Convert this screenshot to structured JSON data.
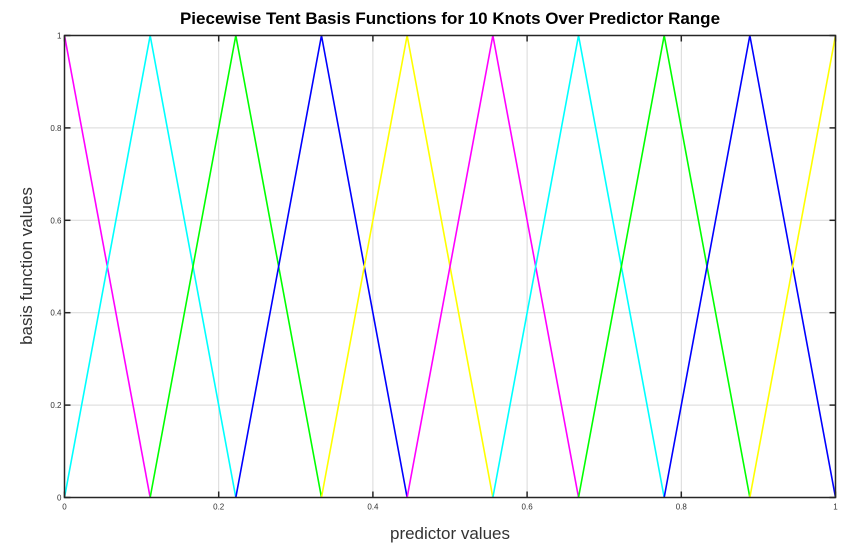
{
  "chart_data": {
    "type": "line",
    "title": "Piecewise Tent Basis Functions for 10 Knots Over Predictor Range",
    "xlabel": "predictor values",
    "ylabel": "basis function values",
    "xlim": [
      0,
      1
    ],
    "ylim": [
      0,
      1
    ],
    "xticks": [
      0,
      0.2,
      0.4,
      0.6,
      0.8,
      1
    ],
    "xtick_labels": [
      "0",
      "0.2",
      "0.4",
      "0.6",
      "0.8",
      "1"
    ],
    "yticks": [
      0,
      0.2,
      0.4,
      0.6,
      0.8,
      1
    ],
    "ytick_labels": [
      "0",
      "0.2",
      "0.4",
      "0.6",
      "0.8",
      "1"
    ],
    "grid": true,
    "knots": [
      0,
      0.1111,
      0.2222,
      0.3333,
      0.4444,
      0.5556,
      0.6667,
      0.7778,
      0.8889,
      1
    ],
    "series_colors": [
      "#ff00ff",
      "#00ffff",
      "#00ff00",
      "#0000ff",
      "#ffff00",
      "#ff00ff",
      "#00ffff",
      "#00ff00",
      "#0000ff",
      "#ffff00"
    ],
    "series_description": "each series is a tent function equal to 1 at its knot and 0 at neighbouring knots"
  }
}
